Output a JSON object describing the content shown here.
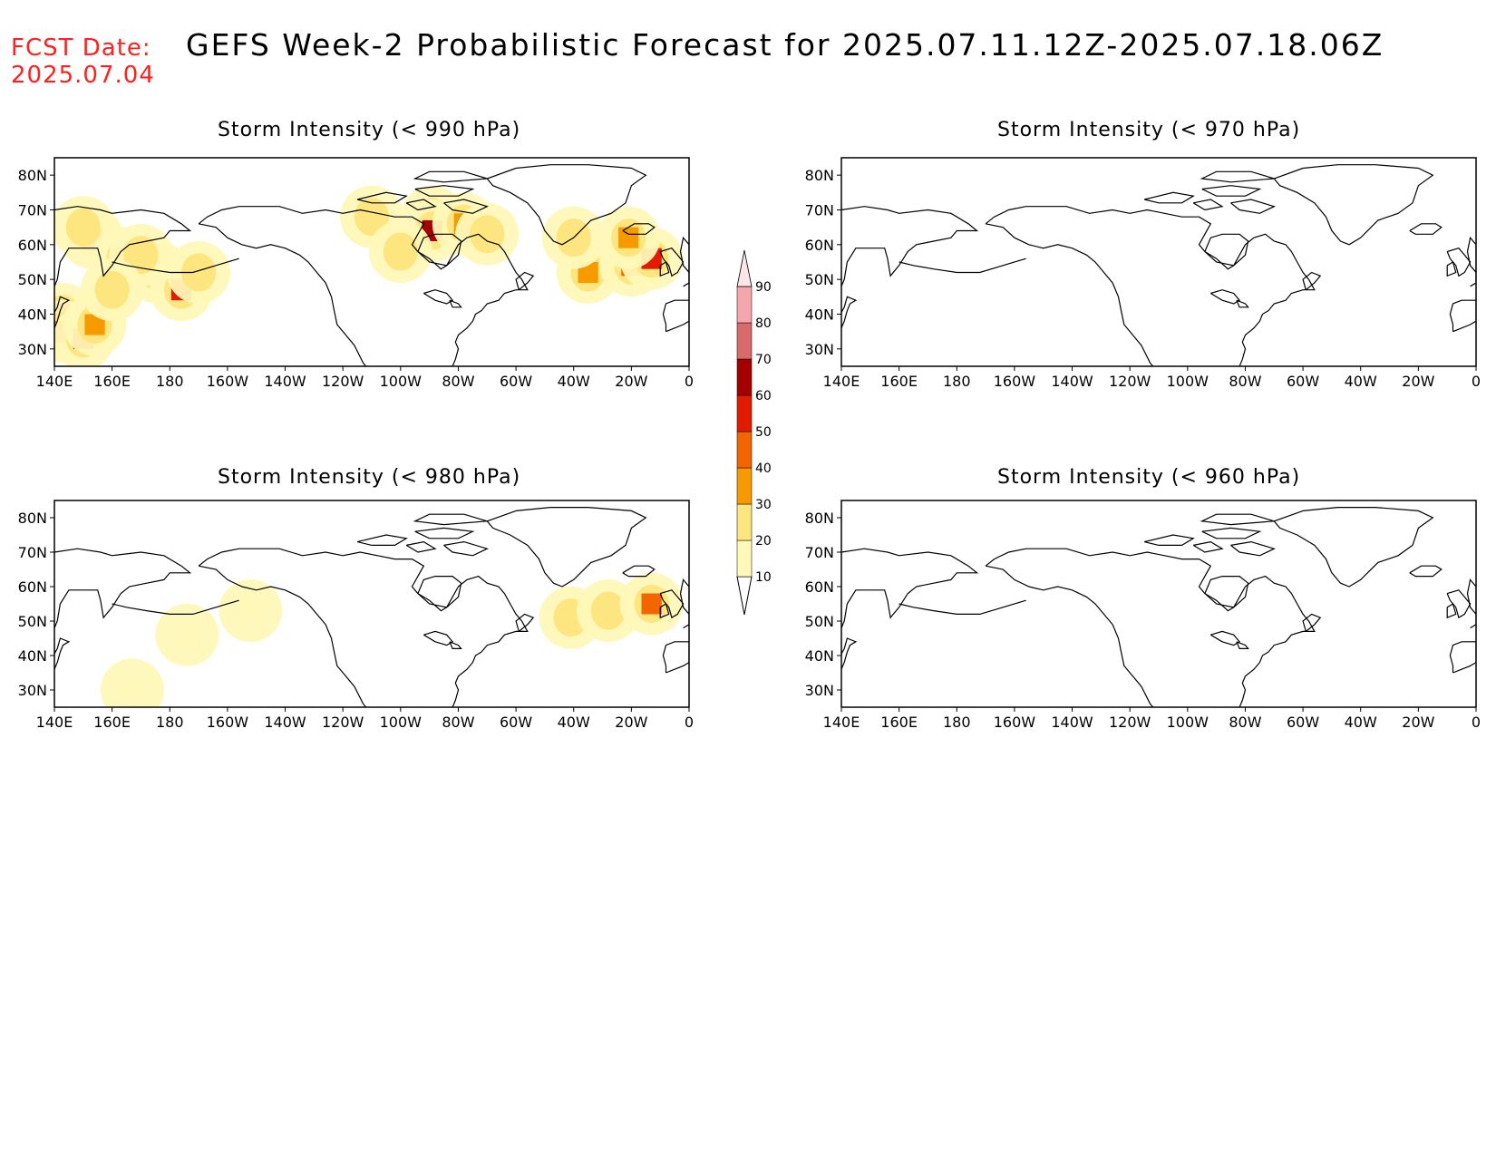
{
  "header": {
    "fcst_label": "FCST Date:",
    "fcst_date": "2025.07.04",
    "title": "GEFS Week-2 Probabilistic Forecast for 2025.07.11.12Z-2025.07.18.06Z"
  },
  "panels": [
    {
      "title": "Storm Intensity (< 990 hPa)"
    },
    {
      "title": "Storm Intensity (< 970 hPa)"
    },
    {
      "title": "Storm Intensity (< 980 hPa)"
    },
    {
      "title": "Storm Intensity (< 960 hPa)"
    }
  ],
  "axes": {
    "lon_ticks": [
      "140E",
      "160E",
      "180",
      "160W",
      "140W",
      "120W",
      "100W",
      "80W",
      "60W",
      "40W",
      "20W",
      "0"
    ],
    "lat_ticks": [
      "80N",
      "70N",
      "60N",
      "50N",
      "40N",
      "30N"
    ],
    "lon_range": [
      140,
      360
    ],
    "lat_range": [
      25,
      85
    ]
  },
  "colorbar": {
    "labels": [
      "10",
      "20",
      "30",
      "40",
      "50",
      "60",
      "70",
      "80",
      "90"
    ],
    "colors": [
      "#fff8b8",
      "#fde680",
      "#f79a00",
      "#f26500",
      "#e21b00",
      "#a40000",
      "#d96a6a",
      "#f3a6ac",
      "#fde6ea"
    ]
  },
  "chart_data": {
    "type": "heatmap",
    "variable": "probability (%)",
    "points_990": [
      {
        "lon": 143,
        "lat": 40,
        "p": 55
      },
      {
        "lon": 143,
        "lat": 35,
        "p": 40
      },
      {
        "lon": 150,
        "lat": 33,
        "p": 50
      },
      {
        "lon": 154,
        "lat": 37,
        "p": 30
      },
      {
        "lon": 153,
        "lat": 62,
        "p": 50
      },
      {
        "lon": 150,
        "lat": 65,
        "p": 20
      },
      {
        "lon": 164,
        "lat": 56,
        "p": 30
      },
      {
        "lon": 176,
        "lat": 52,
        "p": 20
      },
      {
        "lon": 184,
        "lat": 47,
        "p": 55
      },
      {
        "lon": 190,
        "lat": 52,
        "p": 20
      },
      {
        "lon": 170,
        "lat": 57,
        "p": 20
      },
      {
        "lon": 160,
        "lat": 47,
        "p": 20
      },
      {
        "lon": 271,
        "lat": 68,
        "p": 70
      },
      {
        "lon": 271,
        "lat": 64,
        "p": 60
      },
      {
        "lon": 282,
        "lat": 66,
        "p": 30
      },
      {
        "lon": 290,
        "lat": 63,
        "p": 20
      },
      {
        "lon": 325,
        "lat": 52,
        "p": 30
      },
      {
        "lon": 340,
        "lat": 54,
        "p": 40
      },
      {
        "lon": 347,
        "lat": 56,
        "p": 50
      },
      {
        "lon": 339,
        "lat": 62,
        "p": 30
      },
      {
        "lon": 320,
        "lat": 62,
        "p": 20
      },
      {
        "lon": 250,
        "lat": 68,
        "p": 20
      },
      {
        "lon": 260,
        "lat": 58,
        "p": 20
      }
    ],
    "points_980": [
      {
        "lon": 186,
        "lat": 46,
        "p": 10
      },
      {
        "lon": 319,
        "lat": 51,
        "p": 20
      },
      {
        "lon": 332,
        "lat": 53,
        "p": 20
      },
      {
        "lon": 347,
        "lat": 55,
        "p": 40
      },
      {
        "lon": 167,
        "lat": 30,
        "p": 10
      },
      {
        "lon": 208,
        "lat": 53,
        "p": 10
      }
    ],
    "points_970": [],
    "points_960": []
  }
}
